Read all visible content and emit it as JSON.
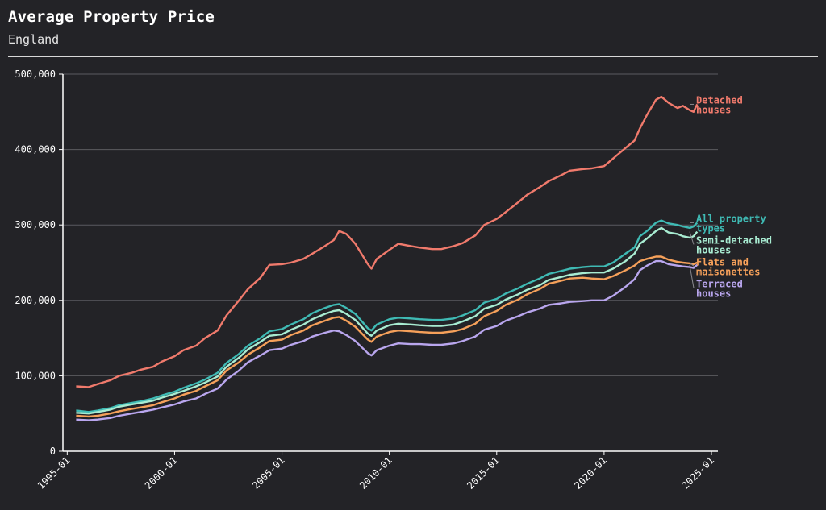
{
  "chart_data": {
    "type": "line",
    "title": "Average Property Price",
    "subtitle": "England",
    "xlabel": "",
    "ylabel": "",
    "ylim": [
      0,
      500000
    ],
    "y_ticks": [
      "0",
      "100,000",
      "200,000",
      "300,000",
      "400,000",
      "500,000"
    ],
    "y_tick_values": [
      0,
      100000,
      200000,
      300000,
      400000,
      500000
    ],
    "x_ticks": [
      "1995-01",
      "2000-01",
      "2005-01",
      "2010-01",
      "2015-01",
      "2020-01",
      "2025-01"
    ],
    "grid": "horizontal",
    "legend": "direct labels right of lines",
    "x_points": [
      "1995-06",
      "1996-01",
      "1996-06",
      "1997-01",
      "1997-06",
      "1998-01",
      "1998-06",
      "1999-01",
      "1999-06",
      "2000-01",
      "2000-06",
      "2001-01",
      "2001-06",
      "2002-01",
      "2002-06",
      "2003-01",
      "2003-06",
      "2004-01",
      "2004-06",
      "2005-01",
      "2005-06",
      "2006-01",
      "2006-06",
      "2007-01",
      "2007-06",
      "2007-09",
      "2008-01",
      "2008-06",
      "2009-01",
      "2009-03",
      "2009-06",
      "2010-01",
      "2010-06",
      "2011-01",
      "2011-06",
      "2012-01",
      "2012-06",
      "2013-01",
      "2013-06",
      "2014-01",
      "2014-06",
      "2015-01",
      "2015-06",
      "2016-01",
      "2016-06",
      "2017-01",
      "2017-06",
      "2018-01",
      "2018-06",
      "2019-01",
      "2019-06",
      "2020-01",
      "2020-06",
      "2021-01",
      "2021-06",
      "2021-09",
      "2022-01",
      "2022-06",
      "2022-09",
      "2023-01",
      "2023-06",
      "2023-09",
      "2024-01",
      "2024-03",
      "2024-05"
    ],
    "series": [
      {
        "name": "Detached houses",
        "label_lines": [
          "Detached",
          "houses"
        ],
        "color": "#f07a6c",
        "values": [
          86000,
          85000,
          89000,
          94000,
          100000,
          104000,
          108000,
          112000,
          119000,
          126000,
          134000,
          140000,
          150000,
          160000,
          180000,
          200000,
          215000,
          230000,
          247000,
          248000,
          250000,
          255000,
          262000,
          272000,
          280000,
          292000,
          288000,
          275000,
          248000,
          242000,
          255000,
          267000,
          275000,
          272000,
          270000,
          268000,
          268000,
          272000,
          276000,
          286000,
          300000,
          308000,
          317000,
          330000,
          340000,
          350000,
          358000,
          366000,
          372000,
          374000,
          375000,
          378000,
          388000,
          402000,
          412000,
          428000,
          446000,
          466000,
          470000,
          462000,
          455000,
          458000,
          452000,
          450000,
          460000
        ]
      },
      {
        "name": "All property types",
        "label_lines": [
          "All property",
          "types"
        ],
        "color": "#3fbab4",
        "values": [
          54000,
          52000,
          54000,
          57000,
          61000,
          64000,
          66000,
          70000,
          74000,
          79000,
          84000,
          90000,
          95000,
          104000,
          117000,
          129000,
          140000,
          150000,
          159000,
          162000,
          168000,
          175000,
          183000,
          190000,
          194000,
          195000,
          190000,
          182000,
          163000,
          160000,
          168000,
          175000,
          177000,
          176000,
          175000,
          174000,
          174000,
          176000,
          180000,
          187000,
          197000,
          202000,
          209000,
          216000,
          222000,
          229000,
          235000,
          239000,
          242000,
          244000,
          245000,
          245000,
          250000,
          262000,
          270000,
          285000,
          292000,
          303000,
          306000,
          302000,
          300000,
          298000,
          296000,
          298000,
          303000
        ]
      },
      {
        "name": "Semi-detached houses",
        "label_lines": [
          "Semi-detached",
          "houses"
        ],
        "color": "#a8ecd2",
        "values": [
          51000,
          50000,
          52000,
          55000,
          59000,
          62000,
          64000,
          67000,
          71000,
          76000,
          80000,
          86000,
          91000,
          99000,
          112000,
          124000,
          135000,
          145000,
          153000,
          155000,
          161000,
          168000,
          175000,
          182000,
          186000,
          187000,
          182000,
          174000,
          156000,
          153000,
          160000,
          167000,
          169000,
          168000,
          167000,
          166000,
          166000,
          168000,
          172000,
          179000,
          189000,
          194000,
          201000,
          208000,
          214000,
          220000,
          227000,
          231000,
          234000,
          236000,
          237000,
          237000,
          242000,
          252000,
          262000,
          275000,
          282000,
          292000,
          296000,
          290000,
          288000,
          285000,
          283000,
          285000,
          291000
        ]
      },
      {
        "name": "Flats and maisonettes",
        "label_lines": [
          "Flats and",
          "maisonettes"
        ],
        "color": "#f5a05a",
        "values": [
          47000,
          46000,
          47000,
          50000,
          53000,
          56000,
          58000,
          61000,
          65000,
          70000,
          75000,
          80000,
          86000,
          94000,
          107000,
          118000,
          128000,
          138000,
          146000,
          148000,
          154000,
          160000,
          167000,
          173000,
          177000,
          178000,
          173000,
          165000,
          148000,
          145000,
          152000,
          158000,
          160000,
          159000,
          158000,
          157000,
          157000,
          159000,
          162000,
          169000,
          179000,
          186000,
          194000,
          201000,
          208000,
          215000,
          222000,
          226000,
          229000,
          230000,
          229000,
          228000,
          232000,
          240000,
          246000,
          252000,
          255000,
          258000,
          258000,
          254000,
          251000,
          250000,
          249000,
          248000,
          250000
        ]
      },
      {
        "name": "Terraced houses",
        "label_lines": [
          "Terraced",
          "houses"
        ],
        "color": "#b9a6ee",
        "values": [
          42000,
          41000,
          42000,
          44000,
          47000,
          50000,
          52000,
          55000,
          58000,
          62000,
          66000,
          70000,
          76000,
          83000,
          95000,
          107000,
          118000,
          127000,
          134000,
          136000,
          141000,
          146000,
          152000,
          157000,
          160000,
          159000,
          154000,
          146000,
          130000,
          127000,
          134000,
          140000,
          143000,
          142000,
          142000,
          141000,
          141000,
          143000,
          146000,
          152000,
          161000,
          166000,
          173000,
          179000,
          184000,
          189000,
          194000,
          196000,
          198000,
          199000,
          200000,
          200000,
          206000,
          218000,
          228000,
          240000,
          246000,
          252000,
          252000,
          248000,
          246000,
          245000,
          244000,
          243000,
          247000
        ]
      }
    ]
  }
}
